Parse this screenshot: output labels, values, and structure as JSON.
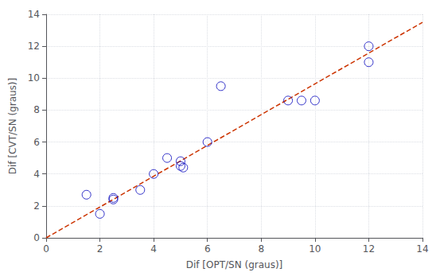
{
  "chart_data": {
    "type": "scatter",
    "xlabel": "Dif [OPT/SN (graus)]",
    "ylabel": "Dif [CVT/SN (graus)]",
    "series": [
      {
        "type": "scatter",
        "color": "#0000bb",
        "marker": "circle",
        "x": [
          1.5,
          2.0,
          2.5,
          2.5,
          3.5,
          4.0,
          4.5,
          5.0,
          5.0,
          5.1,
          6.0,
          6.5,
          9.0,
          9.5,
          10.0,
          12.0,
          12.0
        ],
        "values": [
          2.7,
          1.5,
          2.5,
          2.4,
          3.0,
          4.0,
          5.0,
          4.8,
          4.5,
          4.4,
          6.0,
          9.5,
          8.6,
          8.6,
          8.6,
          11.0,
          12.0
        ]
      },
      {
        "type": "line",
        "color": "#cc3300",
        "line_style": "dashed",
        "x": [
          0,
          14
        ],
        "values": [
          0.0,
          13.5
        ]
      }
    ],
    "xlim": [
      0,
      14
    ],
    "ylim": [
      0,
      14
    ],
    "xticks": [
      0,
      2,
      4,
      6,
      8,
      10,
      12,
      14
    ],
    "yticks": [
      0,
      2,
      4,
      6,
      8,
      10,
      12,
      14
    ],
    "grid": true
  }
}
